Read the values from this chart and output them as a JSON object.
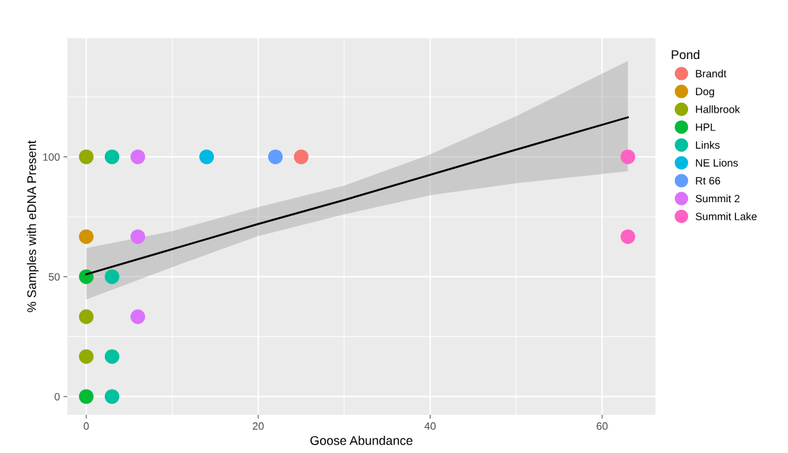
{
  "chart_data": {
    "type": "scatter",
    "xlabel": "Goose Abundance",
    "ylabel": "% Samples with eDNA Present",
    "legend_title": "Pond",
    "xlim": [
      -2.2,
      66.2
    ],
    "ylim": [
      -7.6,
      149.5
    ],
    "xticks": [
      0,
      20,
      40,
      60
    ],
    "yticks": [
      0,
      50,
      100
    ],
    "grid": true,
    "legend": "right",
    "marker": "circle",
    "series": [
      {
        "name": "Brandt",
        "color": "#f8766d",
        "x": [
          25
        ],
        "values": [
          100
        ]
      },
      {
        "name": "Dog",
        "color": "#d39200",
        "x": [
          0
        ],
        "values": [
          66.7
        ]
      },
      {
        "name": "Hallbrook",
        "color": "#93aa00",
        "x": [
          0,
          0,
          0
        ],
        "values": [
          100,
          33.3,
          16.7
        ]
      },
      {
        "name": "HPL",
        "color": "#00ba38",
        "x": [
          0,
          0
        ],
        "values": [
          50,
          0
        ]
      },
      {
        "name": "Links",
        "color": "#00c19f",
        "x": [
          3,
          3,
          3,
          3
        ],
        "values": [
          100,
          50,
          16.7,
          0
        ]
      },
      {
        "name": "NE Lions",
        "color": "#00b9e3",
        "x": [
          14
        ],
        "values": [
          100
        ]
      },
      {
        "name": "Rt 66",
        "color": "#619cff",
        "x": [
          22
        ],
        "values": [
          100
        ]
      },
      {
        "name": "Summit 2",
        "color": "#db72fb",
        "x": [
          6,
          6,
          6
        ],
        "values": [
          100,
          66.7,
          33.3
        ]
      },
      {
        "name": "Summit Lake",
        "color": "#ff61c3",
        "x": [
          63,
          63
        ],
        "values": [
          100,
          66.7
        ]
      },
      {
        "type": "line",
        "marker": "none",
        "color": "#000000",
        "x": [
          0,
          10,
          20,
          30,
          40,
          50,
          63
        ],
        "values": [
          51,
          61.5,
          72,
          82,
          92.5,
          103,
          116.5
        ],
        "lower": [
          40.5,
          54,
          67,
          76,
          84,
          89,
          94
        ],
        "upper": [
          62,
          69,
          79,
          88,
          101,
          117,
          140
        ]
      }
    ]
  }
}
